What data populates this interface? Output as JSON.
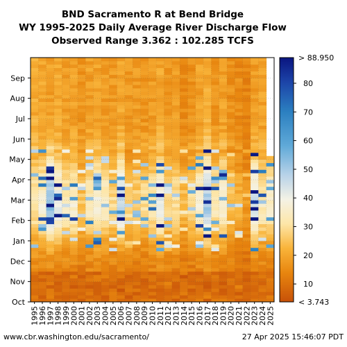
{
  "chart_data": {
    "type": "heatmap",
    "title_lines": [
      "BND Sacramento R at Bend Bridge",
      "WY 1995-2025 Daily Average River Discharge Flow",
      "Observed Range 3.362 : 102.285 TCFS"
    ],
    "x_categories": [
      "1995",
      "1996",
      "1997",
      "1998",
      "1999",
      "2000",
      "2001",
      "2002",
      "2003",
      "2004",
      "2005",
      "2006",
      "2007",
      "2008",
      "2009",
      "2010",
      "2011",
      "2012",
      "2013",
      "2014",
      "2015",
      "2016",
      "2017",
      "2018",
      "2019",
      "2020",
      "2021",
      "2022",
      "2023",
      "2024",
      "2025"
    ],
    "y_months": [
      "Oct",
      "Nov",
      "Dec",
      "Jan",
      "Feb",
      "Mar",
      "Apr",
      "May",
      "Jun",
      "Jul",
      "Aug",
      "Sep"
    ],
    "colorbar": {
      "min_label": "< 3.743",
      "max_label": "> 88.950",
      "ticks": [
        10,
        20,
        30,
        40,
        50,
        60,
        70,
        80
      ],
      "range": [
        3.743,
        88.95
      ]
    },
    "grid": true,
    "winter_peaks": [
      30,
      38,
      70,
      48,
      35,
      40,
      22,
      35,
      42,
      38,
      28,
      55,
      22,
      25,
      30,
      32,
      48,
      25,
      30,
      22,
      30,
      40,
      62,
      35,
      42,
      22,
      18,
      12,
      55,
      35,
      40
    ],
    "summer_base": [
      14,
      13,
      12,
      13,
      12,
      12,
      10,
      12,
      12,
      11,
      11,
      13,
      11,
      11,
      10,
      11,
      13,
      11,
      11,
      8,
      9,
      12,
      14,
      10,
      12,
      9,
      8,
      7,
      11,
      12,
      0
    ],
    "last_year_end_month": 7.2
  },
  "footer": {
    "source": "www.cbr.washington.edu/sacramento/",
    "timestamp": "27 Apr 2025 15:46:07 PDT"
  }
}
